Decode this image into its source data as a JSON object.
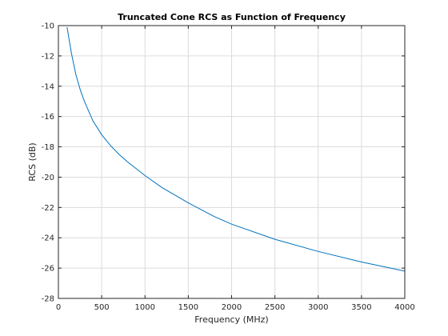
{
  "chart_data": {
    "type": "line",
    "title": "Truncated Cone RCS as Function of Frequency",
    "xlabel": "Frequency (MHz)",
    "ylabel": "RCS (dB)",
    "xlim": [
      0,
      4000
    ],
    "ylim": [
      -28,
      -10
    ],
    "xticks": [
      0,
      500,
      1000,
      1500,
      2000,
      2500,
      3000,
      3500,
      4000
    ],
    "yticks": [
      -28,
      -26,
      -24,
      -22,
      -20,
      -18,
      -16,
      -14,
      -12,
      -10
    ],
    "grid": true,
    "line_color": "#0072bd",
    "series": [
      {
        "x": [
          100,
          150,
          200,
          250,
          300,
          400,
          500,
          600,
          700,
          800,
          1000,
          1200,
          1500,
          1800,
          2000,
          2500,
          3000,
          3500,
          4000
        ],
        "values": [
          -10.1,
          -11.8,
          -13.2,
          -14.2,
          -15.0,
          -16.3,
          -17.2,
          -17.9,
          -18.5,
          -19.0,
          -19.9,
          -20.7,
          -21.7,
          -22.6,
          -23.1,
          -24.1,
          -24.9,
          -25.6,
          -26.2
        ]
      }
    ]
  }
}
